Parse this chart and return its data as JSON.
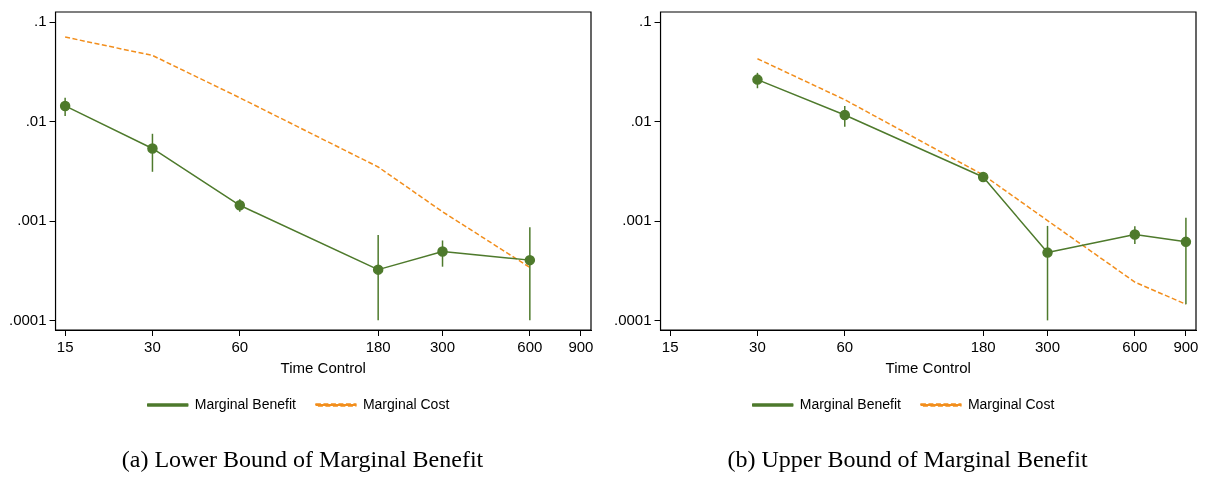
{
  "chart_data": [
    {
      "type": "line",
      "xlabel": "Time Control",
      "x": [
        15,
        30,
        60,
        180,
        300,
        600
      ],
      "log": "xy",
      "grid": false,
      "legend": "bottom",
      "xlim": [
        13.9,
        975
      ],
      "xticks": [
        15,
        30,
        60,
        180,
        300,
        600,
        900
      ],
      "ylim": [
        8e-05,
        0.127
      ],
      "yticks": [
        {
          "value": 0.1,
          "label": ".1"
        },
        {
          "value": 0.01,
          "label": ".01"
        },
        {
          "value": 0.001,
          "label": ".001"
        },
        {
          "value": 0.0001,
          "label": ".0001"
        }
      ],
      "series": [
        {
          "name": "Marginal Benefit",
          "color": "#4e7a2c",
          "marker": "circle",
          "line_style": "solid",
          "values": [
            0.0144,
            0.00537,
            0.00144,
            0.000324,
            0.000493,
            0.000404
          ],
          "errors": [
            [
              0.0114,
              0.0174
            ],
            [
              0.00313,
              0.00755
            ],
            [
              0.00124,
              0.00166
            ],
            [
              0.0001,
              0.000723
            ],
            [
              0.000347,
              0.000637
            ],
            [
              0.0001,
              0.000865
            ]
          ]
        },
        {
          "name": "Marginal Cost",
          "color": "#f28e1c",
          "marker": "none",
          "line_style": "dashed",
          "values": [
            0.0711,
            0.0464,
            0.0174,
            0.0035,
            0.00124,
            0.000341
          ]
        }
      ],
      "annotations": [
        "(a) Lower Bound of Marginal Benefit"
      ]
    },
    {
      "type": "line",
      "xlabel": "Time Control",
      "x": [
        30,
        60,
        180,
        300,
        600,
        900
      ],
      "log": "xy",
      "grid": false,
      "legend": "bottom",
      "xlim": [
        13.9,
        975
      ],
      "xticks": [
        15,
        30,
        60,
        180,
        300,
        600,
        900
      ],
      "ylim": [
        8e-05,
        0.127
      ],
      "yticks": [
        {
          "value": 0.1,
          "label": ".1"
        },
        {
          "value": 0.01,
          "label": ".01"
        },
        {
          "value": 0.001,
          "label": ".001"
        },
        {
          "value": 0.0001,
          "label": ".0001"
        }
      ],
      "series": [
        {
          "name": "Marginal Benefit",
          "color": "#4e7a2c",
          "marker": "circle",
          "line_style": "solid",
          "values": [
            0.0265,
            0.01167,
            0.00277,
            0.000481,
            0.000733,
            0.000617
          ],
          "errors": [
            [
              0.0217,
              0.031
            ],
            [
              0.00887,
              0.01436
            ],
            [
              0.00262,
              0.00292
            ],
            [
              0.0001,
              0.000893
            ],
            [
              0.000586,
              0.000887
            ],
            [
              0.000145,
              0.00108
            ]
          ]
        },
        {
          "name": "Marginal Cost",
          "color": "#f28e1c",
          "marker": "none",
          "line_style": "dashed",
          "values": [
            0.043,
            0.01663,
            0.00291,
            0.00101,
            0.000243,
            0.000145
          ]
        }
      ],
      "annotations": [
        "(b) Upper Bound of Marginal Benefit"
      ]
    }
  ]
}
